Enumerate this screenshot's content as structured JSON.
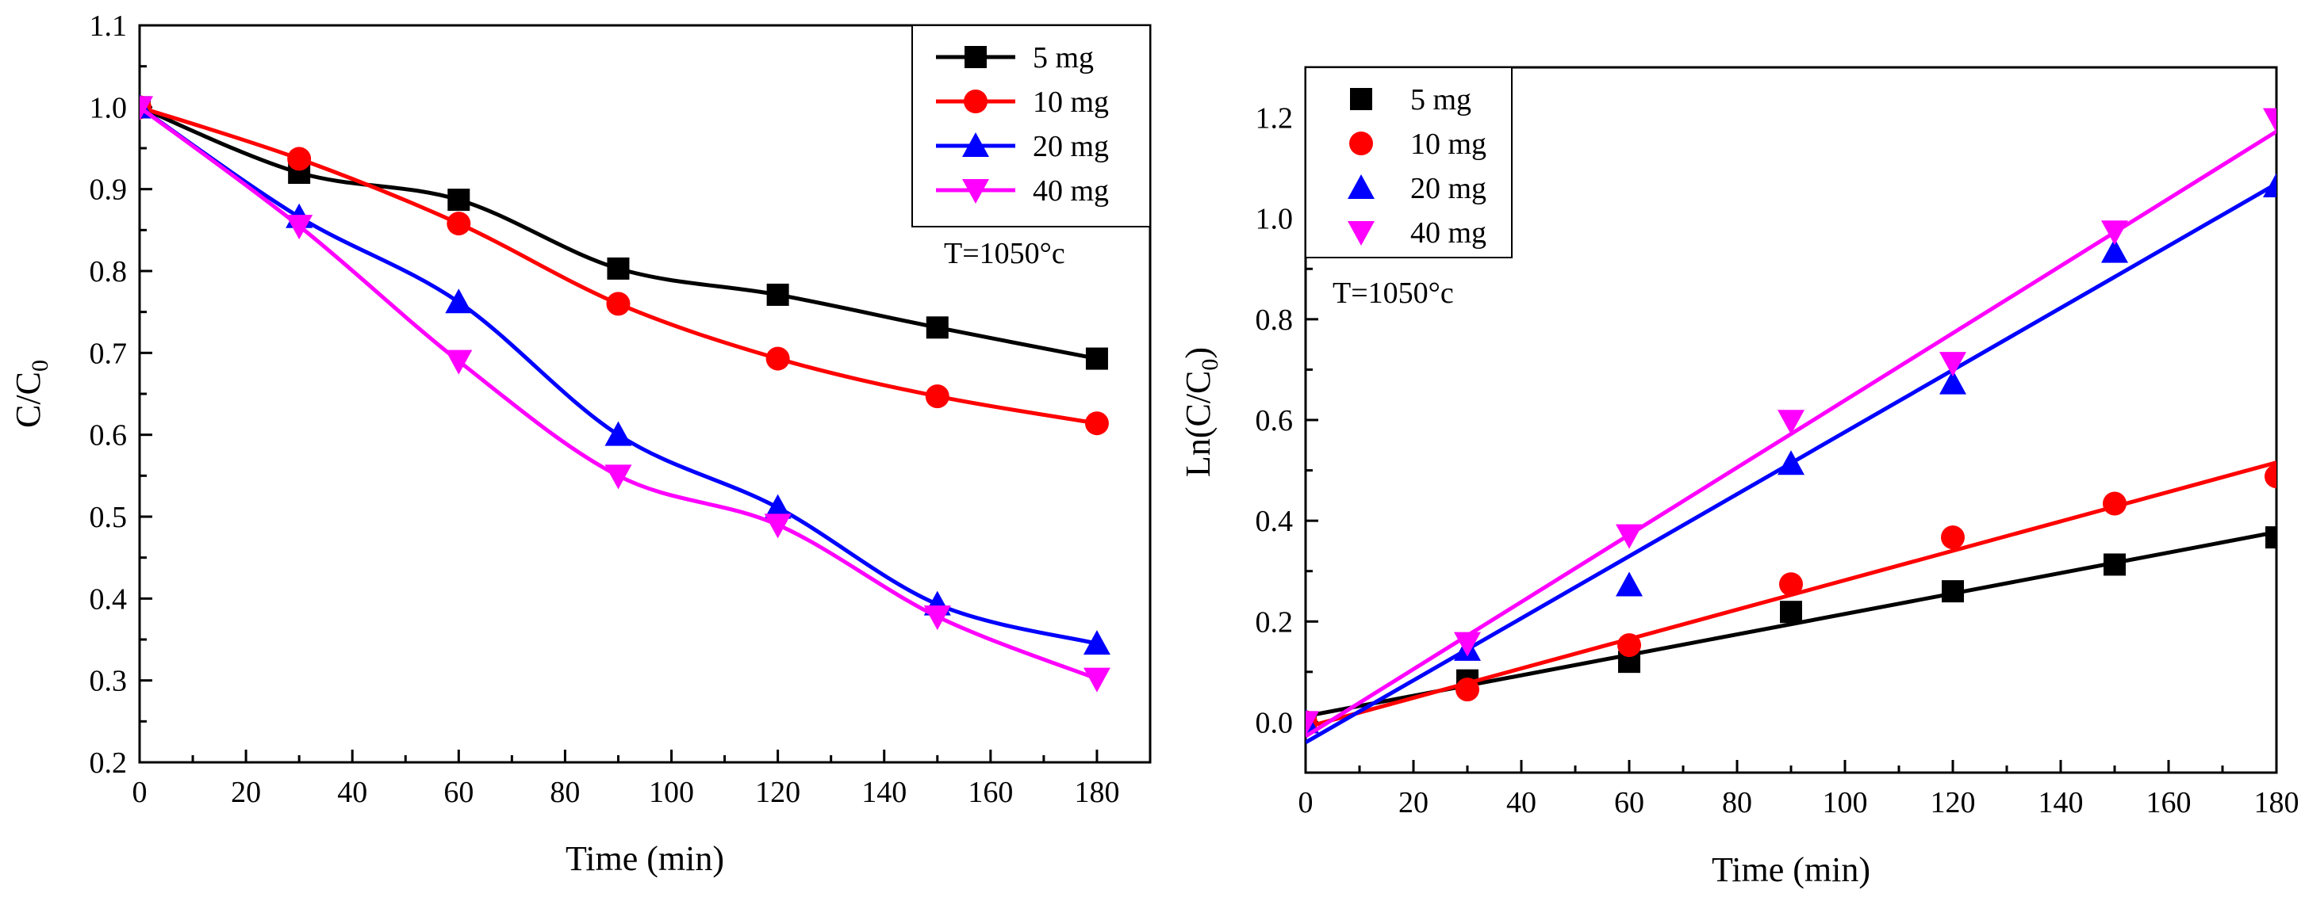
{
  "chart_data": [
    {
      "type": "line",
      "xlabel": "Time (min)",
      "ylabel": "C/C",
      "ylabel_sub": "0",
      "xlim": [
        0,
        190
      ],
      "ylim": [
        0.2,
        1.1
      ],
      "xticks": [
        0,
        20,
        40,
        60,
        80,
        100,
        120,
        140,
        160,
        180
      ],
      "yticks": [
        0.2,
        0.3,
        0.4,
        0.5,
        0.6,
        0.7,
        0.8,
        0.9,
        1.0,
        1.1
      ],
      "x": [
        0,
        30,
        60,
        90,
        120,
        150,
        180
      ],
      "annotation": "T=1050°c",
      "legend_position": "top-right",
      "series": [
        {
          "name": "5 mg",
          "color": "#000000",
          "marker": "square",
          "values": [
            1.0,
            0.92,
            0.887,
            0.803,
            0.771,
            0.731,
            0.693
          ]
        },
        {
          "name": "10 mg",
          "color": "#ff0000",
          "marker": "circle",
          "values": [
            1.0,
            0.937,
            0.858,
            0.76,
            0.693,
            0.647,
            0.614
          ]
        },
        {
          "name": "20 mg",
          "color": "#0000ff",
          "marker": "triangle-up",
          "values": [
            1.0,
            0.866,
            0.762,
            0.6,
            0.511,
            0.393,
            0.345
          ]
        },
        {
          "name": "40 mg",
          "color": "#ff00ff",
          "marker": "triangle-down",
          "values": [
            1.0,
            0.855,
            0.69,
            0.55,
            0.49,
            0.378,
            0.302
          ]
        }
      ]
    },
    {
      "type": "scatter",
      "xlabel": "Time (min)",
      "ylabel": "Ln(C/C",
      "ylabel_sub": "0",
      "ylabel_close": ")",
      "xlim": [
        0,
        180
      ],
      "ylim": [
        -0.1,
        1.3
      ],
      "xticks": [
        0,
        20,
        40,
        60,
        80,
        100,
        120,
        140,
        160,
        180
      ],
      "yticks": [
        0.0,
        0.2,
        0.4,
        0.6,
        0.8,
        1.0,
        1.2
      ],
      "yticklabels": [
        "0.0",
        "0.2",
        "0.4",
        "0.6",
        "0.8",
        "1.0",
        "1.2"
      ],
      "x": [
        0,
        30,
        60,
        90,
        120,
        150,
        180
      ],
      "annotation": "T=1050°c",
      "legend_position": "top-left",
      "series": [
        {
          "name": "5 mg",
          "color": "#000000",
          "marker": "square",
          "values": [
            0.0,
            0.083,
            0.12,
            0.219,
            0.26,
            0.313,
            0.367
          ],
          "fit": [
            0.012,
            0.00203
          ]
        },
        {
          "name": "10 mg",
          "color": "#ff0000",
          "marker": "circle",
          "values": [
            0.0,
            0.065,
            0.153,
            0.274,
            0.367,
            0.434,
            0.488
          ],
          "fit": [
            -0.01,
            0.00292
          ]
        },
        {
          "name": "20 mg",
          "color": "#0000ff",
          "marker": "triangle-up",
          "values": [
            0.0,
            0.144,
            0.272,
            0.513,
            0.673,
            0.934,
            1.064
          ],
          "fit": [
            -0.04,
            0.00616
          ]
        },
        {
          "name": "40 mg",
          "color": "#ff00ff",
          "marker": "triangle-down",
          "values": [
            0.0,
            0.157,
            0.371,
            0.598,
            0.713,
            0.974,
            1.197
          ],
          "fit": [
            -0.028,
            0.00667
          ]
        }
      ]
    }
  ]
}
